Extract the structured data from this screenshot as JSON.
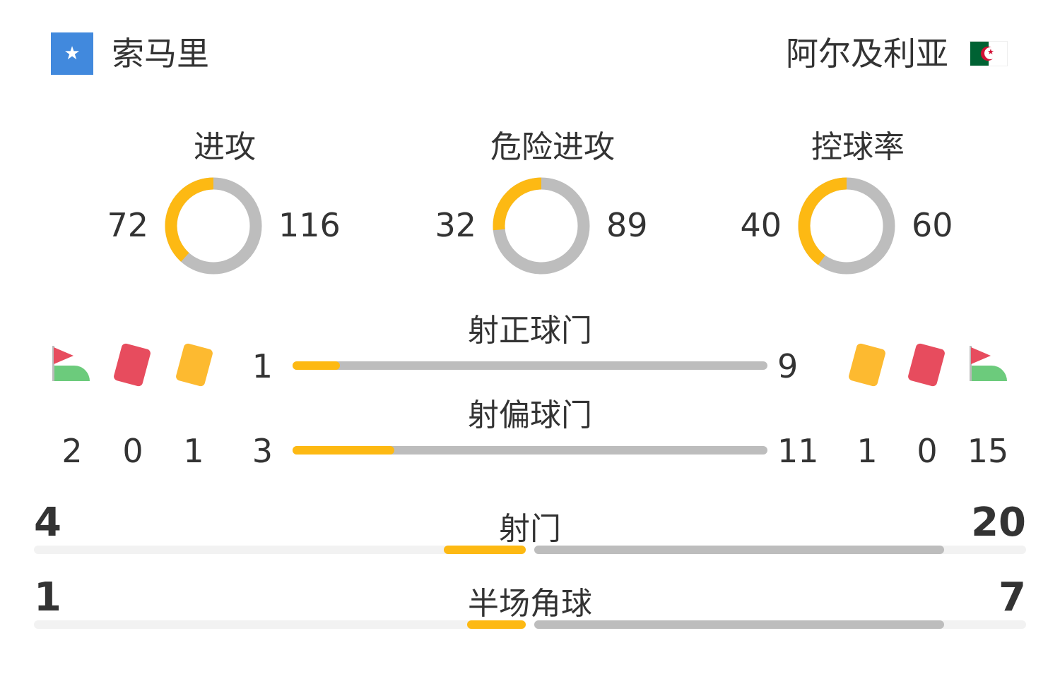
{
  "home": {
    "name": "索马里",
    "flag": "somalia-flag"
  },
  "away": {
    "name": "阿尔及利亚",
    "flag": "algeria-flag"
  },
  "colors": {
    "home": "#FDB913",
    "away": "#BDBDBD",
    "track": "#F2F2F2"
  },
  "donuts": [
    {
      "label": "进攻",
      "home": 72,
      "away": 116
    },
    {
      "label": "危险进攻",
      "home": 32,
      "away": 89
    },
    {
      "label": "控球率",
      "home": 40,
      "away": 60
    }
  ],
  "events": {
    "home": {
      "corners": "2",
      "red_cards": "0",
      "yellow_cards": "1"
    },
    "away": {
      "corners": "15",
      "red_cards": "0",
      "yellow_cards": "1"
    }
  },
  "bars": [
    {
      "label": "射正球门",
      "home": 1,
      "away": 9
    },
    {
      "label": "射偏球门",
      "home": 3,
      "away": 11
    }
  ],
  "split_bars": [
    {
      "label": "射门",
      "home": 4,
      "away": 20
    },
    {
      "label": "半场角球",
      "home": 1,
      "away": 7
    }
  ]
}
